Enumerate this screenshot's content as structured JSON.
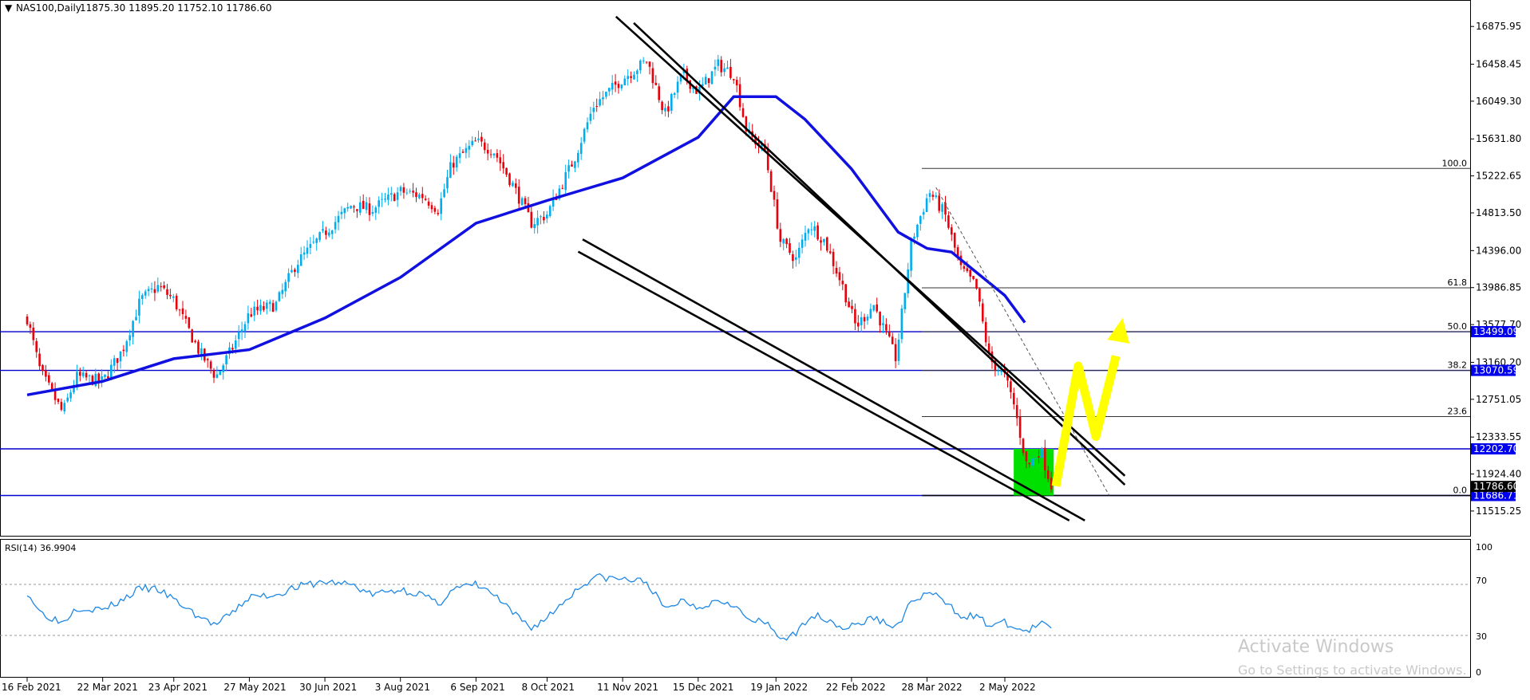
{
  "header": {
    "symbol": "NAS100,Daily",
    "ohlc": "11875.30 11895.20 11752.10 11786.60",
    "menu_icon": "triangle-down-icon"
  },
  "rsi": {
    "label": "RSI(14) 36.9904",
    "scale": [
      "100",
      "70",
      "30",
      "0"
    ]
  },
  "watermark": {
    "title": "Activate Windows",
    "subtitle": "Go to Settings to activate Windows."
  },
  "colors": {
    "bull": "#00aeef",
    "bear": "#e8000b",
    "ma": "#1010e0",
    "hline": "#0000cc",
    "tag_bg": "#0000ee",
    "current_tag_bg": "#000000",
    "green_box": "#00e000",
    "yellow_path": "#ffff00",
    "rsi_line": "#1e88e5"
  },
  "chart_data": [
    {
      "type": "candlestick",
      "title": "NAS100,Daily",
      "ylim": [
        11400,
        17010
      ],
      "y_ticks": [
        "16875.95",
        "16458.45",
        "16049.30",
        "15631.80",
        "15222.65",
        "14813.50",
        "14396.00",
        "13986.85",
        "13577.70",
        "13160.20",
        "12751.05",
        "12333.55",
        "11924.40",
        "11515.25"
      ],
      "x_labels": [
        "16 Feb 2021",
        "22 Mar 2021",
        "23 Apr 2021",
        "27 May 2021",
        "30 Jun 2021",
        "3 Aug 2021",
        "6 Sep 2021",
        "8 Oct 2021",
        "11 Nov 2021",
        "15 Dec 2021",
        "19 Jan 2022",
        "22 Feb 2022",
        "28 Mar 2022",
        "2 May 2022"
      ],
      "close_path": [
        [
          "16 Feb 2021",
          13650
        ],
        [
          "22 Feb 2021",
          13050
        ],
        [
          "4 Mar 2021",
          12600
        ],
        [
          "10 Mar 2021",
          13000
        ],
        [
          "22 Mar 2021",
          12950
        ],
        [
          "31 Mar 2021",
          13300
        ],
        [
          "8 Apr 2021",
          13850
        ],
        [
          "16 Apr 2021",
          14000
        ],
        [
          "23 Apr 2021",
          13850
        ],
        [
          "4 May 2021",
          13300
        ],
        [
          "12 May 2021",
          13000
        ],
        [
          "19 May 2021",
          13300
        ],
        [
          "27 May 2021",
          13700
        ],
        [
          "8 Jun 2021",
          13800
        ],
        [
          "17 Jun 2021",
          14250
        ],
        [
          "30 Jun 2021",
          14600
        ],
        [
          "12 Jul 2021",
          14900
        ],
        [
          "21 Jul 2021",
          14850
        ],
        [
          "3 Aug 2021",
          15050
        ],
        [
          "13 Aug 2021",
          15000
        ],
        [
          "20 Aug 2021",
          14850
        ],
        [
          "26 Aug 2021",
          15350
        ],
        [
          "6 Sep 2021",
          15600
        ],
        [
          "14 Sep 2021",
          15500
        ],
        [
          "22 Sep 2021",
          15150
        ],
        [
          "1 Oct 2021",
          14700
        ],
        [
          "8 Oct 2021",
          14800
        ],
        [
          "20 Oct 2021",
          15400
        ],
        [
          "29 Oct 2021",
          16000
        ],
        [
          "11 Nov 2021",
          16300
        ],
        [
          "22 Nov 2021",
          16500
        ],
        [
          "30 Nov 2021",
          15900
        ],
        [
          "8 Dec 2021",
          16350
        ],
        [
          "15 Dec 2021",
          16150
        ],
        [
          "24 Dec 2021",
          16450
        ],
        [
          "31 Dec 2021",
          16350
        ],
        [
          "6 Jan 2022",
          15700
        ],
        [
          "14 Jan 2022",
          15500
        ],
        [
          "21 Jan 2022",
          14500
        ],
        [
          "28 Jan 2022",
          14300
        ],
        [
          "3 Feb 2022",
          14700
        ],
        [
          "10 Feb 2022",
          14500
        ],
        [
          "18 Feb 2022",
          14000
        ],
        [
          "24 Feb 2022",
          13550
        ],
        [
          "4 Mar 2022",
          13800
        ],
        [
          "14 Mar 2022",
          13200
        ],
        [
          "21 Mar 2022",
          14500
        ],
        [
          "29 Mar 2022",
          15050
        ],
        [
          "5 Apr 2022",
          14800
        ],
        [
          "12 Apr 2022",
          14200
        ],
        [
          "19 Apr 2022",
          14000
        ],
        [
          "25 Apr 2022",
          13200
        ],
        [
          "2 May 2022",
          13000
        ],
        [
          "6 May 2022",
          12700
        ],
        [
          "12 May 2022",
          12000
        ],
        [
          "18 May 2022",
          12200
        ],
        [
          "23 May 2022",
          11786.6
        ]
      ],
      "moving_average": [
        [
          "16 Feb 2021",
          12800
        ],
        [
          "22 Mar 2021",
          12950
        ],
        [
          "23 Apr 2021",
          13200
        ],
        [
          "27 May 2021",
          13300
        ],
        [
          "30 Jun 2021",
          13650
        ],
        [
          "3 Aug 2021",
          14100
        ],
        [
          "6 Sep 2021",
          14700
        ],
        [
          "8 Oct 2021",
          14950
        ],
        [
          "11 Nov 2021",
          15200
        ],
        [
          "15 Dec 2021",
          15650
        ],
        [
          "31 Dec 2021",
          16100
        ],
        [
          "19 Jan 2022",
          16100
        ],
        [
          "1 Feb 2022",
          15850
        ],
        [
          "22 Feb 2022",
          15300
        ],
        [
          "15 Mar 2022",
          14600
        ],
        [
          "28 Mar 2022",
          14420
        ],
        [
          "8 Apr 2022",
          14380
        ],
        [
          "2 May 2022",
          13900
        ],
        [
          "11 May 2022",
          13600
        ]
      ],
      "horizontal_levels": [
        {
          "label": "13499.09",
          "value": 13499.09
        },
        {
          "label": "13070.59",
          "value": 13070.59
        },
        {
          "label": "12202.70",
          "value": 12202.7
        },
        {
          "label": "11686.71",
          "value": 11686.71
        }
      ],
      "current_price": {
        "label": "11786.60",
        "value": 11786.6
      },
      "fibonacci": {
        "levels": [
          {
            "label": "100.0",
            "value": 15305
          },
          {
            "label": "61.8",
            "value": 13985
          },
          {
            "label": "50.0",
            "value": 13499.09
          },
          {
            "label": "38.2",
            "value": 13070.59
          },
          {
            "label": "23.6",
            "value": 12560
          },
          {
            "label": "0.0",
            "value": 11686.71
          }
        ]
      },
      "channel": {
        "upper_line_1": [
          [
            "8 Nov 2021",
            16985
          ],
          [
            "25 Jun 2022",
            11905
          ]
        ],
        "upper_line_2": [
          [
            "16 Nov 2021",
            16915
          ],
          [
            "25 Jun 2022",
            11805
          ]
        ],
        "lower_line_1": [
          [
            "24 Oct 2021",
            14520
          ],
          [
            "7 Jun 2022",
            11410
          ]
        ],
        "lower_line_2": [
          [
            "22 Oct 2021",
            14385
          ],
          [
            "31 May 2022",
            11410
          ]
        ],
        "dashed_line": [
          [
            "1 Apr 2022",
            15095
          ],
          [
            "18 Jun 2022",
            11686.71
          ]
        ]
      },
      "highlight_box": {
        "from": "6 May 2022",
        "to": "24 May 2022",
        "top": 12202.7,
        "bottom": 11686.71
      },
      "projection_path": [
        [
          "25 May 2022",
          11790
        ],
        [
          "4 Jun 2022",
          13120
        ],
        [
          "12 Jun 2022",
          12340
        ],
        [
          "21 Jun 2022",
          13230
        ],
        [
          "24 Jun 2022",
          13650
        ]
      ]
    },
    {
      "type": "line",
      "title": "RSI(14) 36.9904",
      "ylim": [
        0,
        100
      ],
      "y_ticks": [
        "100",
        "70",
        "30",
        "0"
      ],
      "levels": [
        70,
        30
      ],
      "values": [
        [
          "16 Feb 2021",
          64
        ],
        [
          "22 Feb 2021",
          48
        ],
        [
          "4 Mar 2021",
          40
        ],
        [
          "10 Mar 2021",
          52
        ],
        [
          "22 Mar 2021",
          50
        ],
        [
          "31 Mar 2021",
          58
        ],
        [
          "8 Apr 2021",
          67
        ],
        [
          "16 Apr 2021",
          66
        ],
        [
          "23 Apr 2021",
          58
        ],
        [
          "4 May 2021",
          45
        ],
        [
          "12 May 2021",
          38
        ],
        [
          "19 May 2021",
          47
        ],
        [
          "27 May 2021",
          60
        ],
        [
          "8 Jun 2021",
          62
        ],
        [
          "17 Jun 2021",
          68
        ],
        [
          "30 Jun 2021",
          72
        ],
        [
          "12 Jul 2021",
          70
        ],
        [
          "21 Jul 2021",
          62
        ],
        [
          "3 Aug 2021",
          66
        ],
        [
          "13 Aug 2021",
          62
        ],
        [
          "20 Aug 2021",
          54
        ],
        [
          "26 Aug 2021",
          66
        ],
        [
          "6 Sep 2021",
          70
        ],
        [
          "14 Sep 2021",
          62
        ],
        [
          "22 Sep 2021",
          48
        ],
        [
          "1 Oct 2021",
          36
        ],
        [
          "8 Oct 2021",
          44
        ],
        [
          "20 Oct 2021",
          64
        ],
        [
          "29 Oct 2021",
          76
        ],
        [
          "11 Nov 2021",
          74
        ],
        [
          "22 Nov 2021",
          72
        ],
        [
          "30 Nov 2021",
          50
        ],
        [
          "8 Dec 2021",
          58
        ],
        [
          "15 Dec 2021",
          52
        ],
        [
          "24 Dec 2021",
          58
        ],
        [
          "31 Dec 2021",
          55
        ],
        [
          "6 Jan 2022",
          42
        ],
        [
          "14 Jan 2022",
          40
        ],
        [
          "21 Jan 2022",
          28
        ],
        [
          "28 Jan 2022",
          30
        ],
        [
          "3 Feb 2022",
          46
        ],
        [
          "10 Feb 2022",
          44
        ],
        [
          "18 Feb 2022",
          36
        ],
        [
          "24 Feb 2022",
          38
        ],
        [
          "4 Mar 2022",
          44
        ],
        [
          "14 Mar 2022",
          36
        ],
        [
          "21 Mar 2022",
          56
        ],
        [
          "29 Mar 2022",
          64
        ],
        [
          "5 Apr 2022",
          56
        ],
        [
          "12 Apr 2022",
          46
        ],
        [
          "19 Apr 2022",
          45
        ],
        [
          "25 Apr 2022",
          38
        ],
        [
          "2 May 2022",
          40
        ],
        [
          "6 May 2022",
          36
        ],
        [
          "12 May 2022",
          33
        ],
        [
          "18 May 2022",
          39
        ],
        [
          "23 May 2022",
          37
        ]
      ]
    }
  ]
}
